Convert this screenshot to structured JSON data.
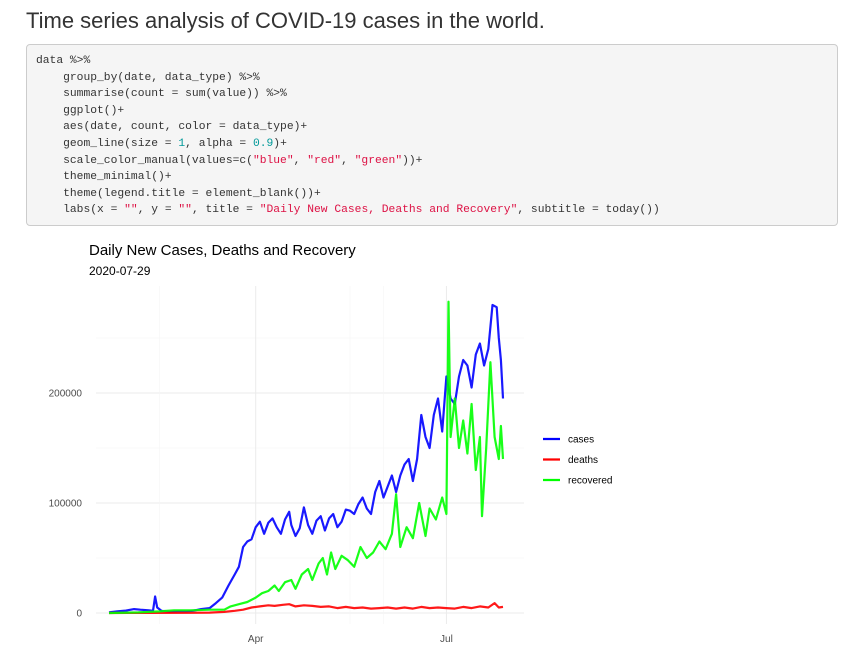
{
  "heading": "Time series analysis of COVID-19 cases in the world.",
  "code": {
    "lines": [
      [
        {
          "t": "data %>%"
        }
      ],
      [
        {
          "t": "    group_by(date, data_type) %>%"
        }
      ],
      [
        {
          "t": "    summarise(count = sum(value)) %>%"
        }
      ],
      [
        {
          "t": "    ggplot()+"
        }
      ],
      [
        {
          "t": "    aes(date, count, color = data_type)+"
        }
      ],
      [
        {
          "t": "    geom_line(size = "
        },
        {
          "t": "1",
          "c": "num"
        },
        {
          "t": ", alpha = "
        },
        {
          "t": "0.9",
          "c": "num"
        },
        {
          "t": ")+"
        }
      ],
      [
        {
          "t": "    scale_color_manual(values=c("
        },
        {
          "t": "\"blue\"",
          "c": "str"
        },
        {
          "t": ", "
        },
        {
          "t": "\"red\"",
          "c": "str"
        },
        {
          "t": ", "
        },
        {
          "t": "\"green\"",
          "c": "str"
        },
        {
          "t": "))+"
        }
      ],
      [
        {
          "t": "    theme_minimal()+"
        }
      ],
      [
        {
          "t": "    theme(legend.title = element_blank())+"
        }
      ],
      [
        {
          "t": "    labs(x = "
        },
        {
          "t": "\"\"",
          "c": "str"
        },
        {
          "t": ", y = "
        },
        {
          "t": "\"\"",
          "c": "str"
        },
        {
          "t": ", title = "
        },
        {
          "t": "\"Daily New Cases, Deaths and Recovery\"",
          "c": "str"
        },
        {
          "t": ", subtitle = today())"
        }
      ]
    ]
  },
  "colors": {
    "cases": "#0000ff",
    "deaths": "#ff0000",
    "recovered": "#00ff00",
    "grid_major": "#ebebeb",
    "grid_minor": "#f5f5f5"
  },
  "chart_data": {
    "type": "line",
    "title": "Daily New Cases, Deaths and Recovery",
    "subtitle": "2020-07-29",
    "xlabel": "",
    "ylabel": "",
    "x_range": [
      "2020-01-22",
      "2020-07-28"
    ],
    "x_ticks": [
      {
        "date": "2020-04-01",
        "label": "Apr"
      },
      {
        "date": "2020-07-01",
        "label": "Jul"
      }
    ],
    "ylim": [
      0,
      290000
    ],
    "y_ticks": [
      0,
      100000,
      200000
    ],
    "y_tick_labels": [
      "0",
      "100000",
      "200000"
    ],
    "grid": true,
    "legend_position": "right",
    "series": [
      {
        "name": "cases",
        "color": "#0000ff",
        "points": [
          [
            "2020-01-22",
            600
          ],
          [
            "2020-01-26",
            1500
          ],
          [
            "2020-01-30",
            2200
          ],
          [
            "2020-02-03",
            3500
          ],
          [
            "2020-02-06",
            3000
          ],
          [
            "2020-02-10",
            2500
          ],
          [
            "2020-02-12",
            2000
          ],
          [
            "2020-02-13",
            15000
          ],
          [
            "2020-02-14",
            5000
          ],
          [
            "2020-02-16",
            2000
          ],
          [
            "2020-02-20",
            1000
          ],
          [
            "2020-02-24",
            1500
          ],
          [
            "2020-02-28",
            1500
          ],
          [
            "2020-03-02",
            2000
          ],
          [
            "2020-03-06",
            3500
          ],
          [
            "2020-03-10",
            4500
          ],
          [
            "2020-03-13",
            9000
          ],
          [
            "2020-03-16",
            14000
          ],
          [
            "2020-03-19",
            25000
          ],
          [
            "2020-03-22",
            35000
          ],
          [
            "2020-03-24",
            42000
          ],
          [
            "2020-03-26",
            60000
          ],
          [
            "2020-03-28",
            65000
          ],
          [
            "2020-03-30",
            67000
          ],
          [
            "2020-04-01",
            78000
          ],
          [
            "2020-04-03",
            83000
          ],
          [
            "2020-04-05",
            72000
          ],
          [
            "2020-04-07",
            82000
          ],
          [
            "2020-04-09",
            86000
          ],
          [
            "2020-04-11",
            78000
          ],
          [
            "2020-04-13",
            72000
          ],
          [
            "2020-04-15",
            85000
          ],
          [
            "2020-04-17",
            92000
          ],
          [
            "2020-04-18",
            80000
          ],
          [
            "2020-04-20",
            70000
          ],
          [
            "2020-04-22",
            77000
          ],
          [
            "2020-04-24",
            96000
          ],
          [
            "2020-04-26",
            80000
          ],
          [
            "2020-04-28",
            72000
          ],
          [
            "2020-04-30",
            84000
          ],
          [
            "2020-05-02",
            88000
          ],
          [
            "2020-05-04",
            75000
          ],
          [
            "2020-05-06",
            86000
          ],
          [
            "2020-05-08",
            90000
          ],
          [
            "2020-05-10",
            78000
          ],
          [
            "2020-05-12",
            83000
          ],
          [
            "2020-05-14",
            94000
          ],
          [
            "2020-05-16",
            93000
          ],
          [
            "2020-05-18",
            90000
          ],
          [
            "2020-05-20",
            99000
          ],
          [
            "2020-05-22",
            105000
          ],
          [
            "2020-05-24",
            95000
          ],
          [
            "2020-05-26",
            90000
          ],
          [
            "2020-05-28",
            110000
          ],
          [
            "2020-05-30",
            120000
          ],
          [
            "2020-06-01",
            105000
          ],
          [
            "2020-06-03",
            115000
          ],
          [
            "2020-06-05",
            125000
          ],
          [
            "2020-06-07",
            110000
          ],
          [
            "2020-06-09",
            125000
          ],
          [
            "2020-06-11",
            135000
          ],
          [
            "2020-06-13",
            140000
          ],
          [
            "2020-06-15",
            120000
          ],
          [
            "2020-06-17",
            140000
          ],
          [
            "2020-06-19",
            180000
          ],
          [
            "2020-06-21",
            160000
          ],
          [
            "2020-06-23",
            150000
          ],
          [
            "2020-06-25",
            180000
          ],
          [
            "2020-06-27",
            195000
          ],
          [
            "2020-06-29",
            165000
          ],
          [
            "2020-07-01",
            215000
          ],
          [
            "2020-07-03",
            195000
          ],
          [
            "2020-07-05",
            190000
          ],
          [
            "2020-07-07",
            215000
          ],
          [
            "2020-07-09",
            230000
          ],
          [
            "2020-07-11",
            225000
          ],
          [
            "2020-07-13",
            205000
          ],
          [
            "2020-07-15",
            235000
          ],
          [
            "2020-07-17",
            245000
          ],
          [
            "2020-07-19",
            225000
          ],
          [
            "2020-07-21",
            240000
          ],
          [
            "2020-07-23",
            280000
          ],
          [
            "2020-07-25",
            278000
          ],
          [
            "2020-07-26",
            250000
          ],
          [
            "2020-07-27",
            230000
          ],
          [
            "2020-07-28",
            195000
          ]
        ]
      },
      {
        "name": "deaths",
        "color": "#ff0000",
        "points": [
          [
            "2020-01-22",
            0
          ],
          [
            "2020-02-10",
            100
          ],
          [
            "2020-03-01",
            200
          ],
          [
            "2020-03-10",
            400
          ],
          [
            "2020-03-17",
            1000
          ],
          [
            "2020-03-22",
            2000
          ],
          [
            "2020-03-26",
            3000
          ],
          [
            "2020-03-30",
            5000
          ],
          [
            "2020-04-03",
            6000
          ],
          [
            "2020-04-07",
            7000
          ],
          [
            "2020-04-10",
            6500
          ],
          [
            "2020-04-14",
            7500
          ],
          [
            "2020-04-17",
            8000
          ],
          [
            "2020-04-20",
            6000
          ],
          [
            "2020-04-24",
            7000
          ],
          [
            "2020-04-28",
            6500
          ],
          [
            "2020-05-02",
            5500
          ],
          [
            "2020-05-06",
            6000
          ],
          [
            "2020-05-10",
            4500
          ],
          [
            "2020-05-14",
            5500
          ],
          [
            "2020-05-18",
            4500
          ],
          [
            "2020-05-22",
            5000
          ],
          [
            "2020-05-26",
            4000
          ],
          [
            "2020-05-30",
            4500
          ],
          [
            "2020-06-03",
            5000
          ],
          [
            "2020-06-07",
            4000
          ],
          [
            "2020-06-11",
            5000
          ],
          [
            "2020-06-15",
            4000
          ],
          [
            "2020-06-19",
            5500
          ],
          [
            "2020-06-23",
            4500
          ],
          [
            "2020-06-27",
            5000
          ],
          [
            "2020-07-01",
            4500
          ],
          [
            "2020-07-05",
            4000
          ],
          [
            "2020-07-09",
            5500
          ],
          [
            "2020-07-13",
            4500
          ],
          [
            "2020-07-17",
            6000
          ],
          [
            "2020-07-21",
            5000
          ],
          [
            "2020-07-24",
            9000
          ],
          [
            "2020-07-26",
            5000
          ],
          [
            "2020-07-28",
            5500
          ]
        ]
      },
      {
        "name": "recovered",
        "color": "#00ff00",
        "points": [
          [
            "2020-01-22",
            0
          ],
          [
            "2020-02-05",
            500
          ],
          [
            "2020-02-15",
            1500
          ],
          [
            "2020-02-22",
            2500
          ],
          [
            "2020-03-01",
            2500
          ],
          [
            "2020-03-10",
            3000
          ],
          [
            "2020-03-17",
            3000
          ],
          [
            "2020-03-20",
            6000
          ],
          [
            "2020-03-24",
            8000
          ],
          [
            "2020-03-28",
            10000
          ],
          [
            "2020-04-01",
            14000
          ],
          [
            "2020-04-04",
            18000
          ],
          [
            "2020-04-07",
            20000
          ],
          [
            "2020-04-10",
            25000
          ],
          [
            "2020-04-12",
            20000
          ],
          [
            "2020-04-15",
            28000
          ],
          [
            "2020-04-18",
            30000
          ],
          [
            "2020-04-20",
            22000
          ],
          [
            "2020-04-23",
            35000
          ],
          [
            "2020-04-26",
            40000
          ],
          [
            "2020-04-28",
            30000
          ],
          [
            "2020-05-01",
            45000
          ],
          [
            "2020-05-03",
            50000
          ],
          [
            "2020-05-05",
            35000
          ],
          [
            "2020-05-07",
            55000
          ],
          [
            "2020-05-09",
            40000
          ],
          [
            "2020-05-12",
            52000
          ],
          [
            "2020-05-15",
            48000
          ],
          [
            "2020-05-18",
            42000
          ],
          [
            "2020-05-21",
            60000
          ],
          [
            "2020-05-24",
            50000
          ],
          [
            "2020-05-27",
            55000
          ],
          [
            "2020-05-30",
            65000
          ],
          [
            "2020-06-02",
            58000
          ],
          [
            "2020-06-05",
            72000
          ],
          [
            "2020-06-07",
            108000
          ],
          [
            "2020-06-09",
            60000
          ],
          [
            "2020-06-12",
            78000
          ],
          [
            "2020-06-15",
            68000
          ],
          [
            "2020-06-18",
            100000
          ],
          [
            "2020-06-21",
            70000
          ],
          [
            "2020-06-23",
            95000
          ],
          [
            "2020-06-26",
            85000
          ],
          [
            "2020-06-29",
            105000
          ],
          [
            "2020-07-01",
            90000
          ],
          [
            "2020-07-02",
            283000
          ],
          [
            "2020-07-03",
            160000
          ],
          [
            "2020-07-05",
            195000
          ],
          [
            "2020-07-07",
            150000
          ],
          [
            "2020-07-09",
            175000
          ],
          [
            "2020-07-11",
            145000
          ],
          [
            "2020-07-13",
            190000
          ],
          [
            "2020-07-15",
            130000
          ],
          [
            "2020-07-17",
            160000
          ],
          [
            "2020-07-18",
            88000
          ],
          [
            "2020-07-20",
            150000
          ],
          [
            "2020-07-22",
            228000
          ],
          [
            "2020-07-24",
            160000
          ],
          [
            "2020-07-26",
            140000
          ],
          [
            "2020-07-27",
            170000
          ],
          [
            "2020-07-28",
            140000
          ]
        ]
      }
    ]
  }
}
